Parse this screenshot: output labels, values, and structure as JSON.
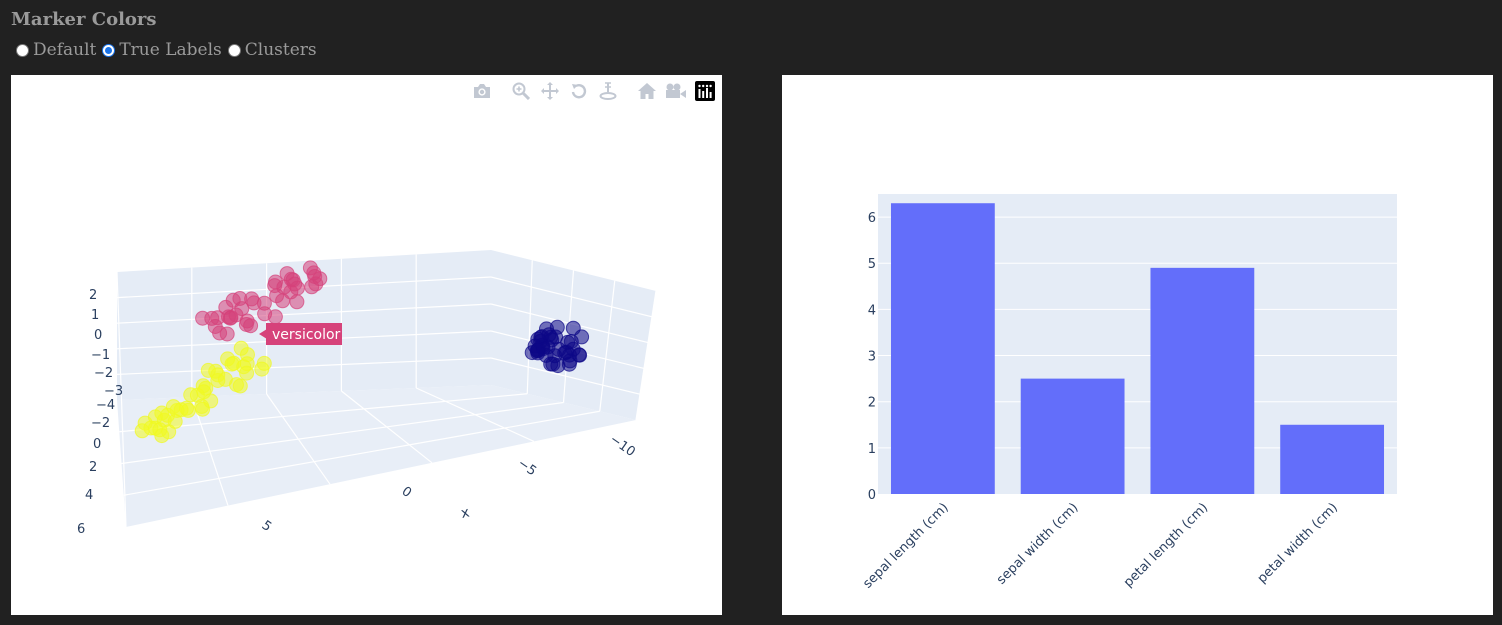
{
  "controls": {
    "title": "Marker Colors",
    "options": [
      {
        "label": "Default",
        "checked": false
      },
      {
        "label": "True Labels",
        "checked": true
      },
      {
        "label": "Clusters",
        "checked": false
      }
    ]
  },
  "scatter3d": {
    "modebar": [
      "camera-icon",
      "zoom-icon",
      "pan-icon",
      "orbit-icon",
      "turntable-icon",
      "home-icon",
      "video-camera-icon",
      "plotly-logo-icon"
    ],
    "z_ticks": [
      "2",
      "1",
      "0",
      "−1",
      "−2",
      "−3",
      "−4"
    ],
    "y_ticks": [
      "−2",
      "0",
      "2",
      "4",
      "6"
    ],
    "x_ticks": [
      "5",
      "0",
      "−5",
      "−10"
    ],
    "x_axis_title": "x",
    "tooltip": "versicolor",
    "colors": {
      "setosa": "#0d0887",
      "versicolor": "#d6427a",
      "virginica": "#f0f921"
    }
  },
  "chart_data": {
    "type": "bar",
    "categories": [
      "sepal length (cm)",
      "sepal width (cm)",
      "petal length (cm)",
      "petal width (cm)"
    ],
    "values": [
      6.3,
      2.5,
      4.9,
      1.5
    ],
    "ylim": [
      0,
      6.5
    ],
    "yticks": [
      0,
      1,
      2,
      3,
      4,
      5,
      6
    ],
    "color": "#636efa",
    "plot_bg": "#e5ecf6",
    "grid": true
  }
}
